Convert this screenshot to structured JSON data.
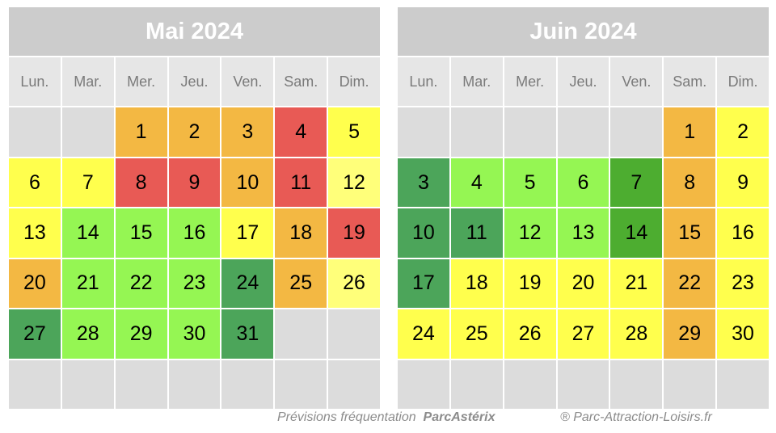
{
  "weekdays": [
    "Lun.",
    "Mar.",
    "Mer.",
    "Jeu.",
    "Ven.",
    "Sam.",
    "Dim."
  ],
  "legend_colors": {
    "orange": "#f3b843",
    "red": "#e85a55",
    "yellow": "#ffff4d",
    "paleyellow": "#ffff7a",
    "lime": "#95f653",
    "green": "#4ca55a",
    "darkgreen": "#4dad30",
    "empty": "#dcdcdc",
    "header": "#cccccc"
  },
  "calendars": [
    {
      "title": "Mai 2024",
      "leading_blanks": 2,
      "days": [
        {
          "n": "1",
          "c": "orange"
        },
        {
          "n": "2",
          "c": "orange"
        },
        {
          "n": "3",
          "c": "orange"
        },
        {
          "n": "4",
          "c": "red"
        },
        {
          "n": "5",
          "c": "yellow"
        },
        {
          "n": "6",
          "c": "yellow"
        },
        {
          "n": "7",
          "c": "yellow"
        },
        {
          "n": "8",
          "c": "red"
        },
        {
          "n": "9",
          "c": "red"
        },
        {
          "n": "10",
          "c": "orange"
        },
        {
          "n": "11",
          "c": "red"
        },
        {
          "n": "12",
          "c": "paleyellow"
        },
        {
          "n": "13",
          "c": "yellow"
        },
        {
          "n": "14",
          "c": "lime"
        },
        {
          "n": "15",
          "c": "lime"
        },
        {
          "n": "16",
          "c": "lime"
        },
        {
          "n": "17",
          "c": "yellow"
        },
        {
          "n": "18",
          "c": "orange"
        },
        {
          "n": "19",
          "c": "red"
        },
        {
          "n": "20",
          "c": "orange"
        },
        {
          "n": "21",
          "c": "lime"
        },
        {
          "n": "22",
          "c": "lime"
        },
        {
          "n": "23",
          "c": "lime"
        },
        {
          "n": "24",
          "c": "green"
        },
        {
          "n": "25",
          "c": "orange"
        },
        {
          "n": "26",
          "c": "paleyellow"
        },
        {
          "n": "27",
          "c": "green"
        },
        {
          "n": "28",
          "c": "lime"
        },
        {
          "n": "29",
          "c": "lime"
        },
        {
          "n": "30",
          "c": "lime"
        },
        {
          "n": "31",
          "c": "green"
        }
      ]
    },
    {
      "title": "Juin 2024",
      "leading_blanks": 5,
      "days": [
        {
          "n": "1",
          "c": "orange"
        },
        {
          "n": "2",
          "c": "yellow"
        },
        {
          "n": "3",
          "c": "green"
        },
        {
          "n": "4",
          "c": "lime"
        },
        {
          "n": "5",
          "c": "lime"
        },
        {
          "n": "6",
          "c": "lime"
        },
        {
          "n": "7",
          "c": "darkgreen"
        },
        {
          "n": "8",
          "c": "orange"
        },
        {
          "n": "9",
          "c": "yellow"
        },
        {
          "n": "10",
          "c": "green"
        },
        {
          "n": "11",
          "c": "green"
        },
        {
          "n": "12",
          "c": "lime"
        },
        {
          "n": "13",
          "c": "lime"
        },
        {
          "n": "14",
          "c": "darkgreen"
        },
        {
          "n": "15",
          "c": "orange"
        },
        {
          "n": "16",
          "c": "yellow"
        },
        {
          "n": "17",
          "c": "green"
        },
        {
          "n": "18",
          "c": "yellow"
        },
        {
          "n": "19",
          "c": "yellow"
        },
        {
          "n": "20",
          "c": "yellow"
        },
        {
          "n": "21",
          "c": "yellow"
        },
        {
          "n": "22",
          "c": "orange"
        },
        {
          "n": "23",
          "c": "yellow"
        },
        {
          "n": "24",
          "c": "yellow"
        },
        {
          "n": "25",
          "c": "yellow"
        },
        {
          "n": "26",
          "c": "yellow"
        },
        {
          "n": "27",
          "c": "yellow"
        },
        {
          "n": "28",
          "c": "yellow"
        },
        {
          "n": "29",
          "c": "orange"
        },
        {
          "n": "30",
          "c": "yellow"
        }
      ]
    }
  ],
  "footer": {
    "forecast_prefix": "Prévisions fréquentation",
    "park_name": "ParcAstérix",
    "copyright": "® Parc-Attraction-Loisirs.fr"
  }
}
